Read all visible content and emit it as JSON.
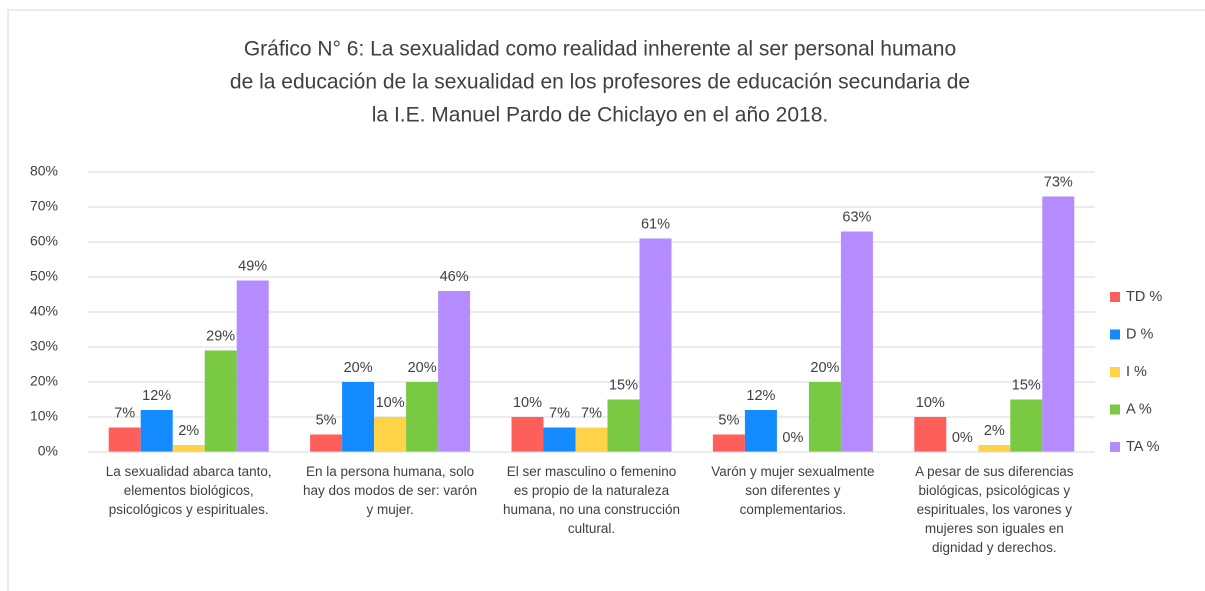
{
  "chart_data": {
    "type": "bar",
    "title": [
      "Gráfico N° 6: La sexualidad como realidad inherente al ser personal humano",
      "de la educación de la sexualidad en los profesores de educación secundaria de",
      "la I.E. Manuel Pardo de Chiclayo en el año 2018."
    ],
    "categories": [
      "La sexualidad abarca tanto, elementos biológicos, psicológicos y espirituales.",
      "En la persona humana, solo hay dos modos de ser: varón y mujer.",
      "El ser masculino o femenino es propio de la naturaleza humana, no una construcción cultural.",
      "Varón y mujer sexualmente son diferentes y complementarios.",
      "A pesar de sus diferencias biológicas, psicológicas y espirituales, los varones y mujeres son iguales en dignidad y derechos."
    ],
    "series": [
      {
        "name": "TD %",
        "color": "#ff5f5a",
        "values": [
          7,
          5,
          10,
          5,
          10
        ],
        "value_labels": [
          "7%",
          "5%",
          "10%",
          "5%",
          "10%"
        ]
      },
      {
        "name": "D %",
        "color": "#138bff",
        "values": [
          12,
          20,
          7,
          12,
          0
        ],
        "value_labels": [
          "12%",
          "20%",
          "7%",
          "12%",
          "0%"
        ]
      },
      {
        "name": "I %",
        "color": "#ffd347",
        "values": [
          2,
          10,
          7,
          0,
          2
        ],
        "value_labels": [
          "2%",
          "10%",
          "7%",
          "0%",
          "2%"
        ]
      },
      {
        "name": "A %",
        "color": "#79c943",
        "values": [
          29,
          20,
          15,
          20,
          15
        ],
        "value_labels": [
          "29%",
          "20%",
          "15%",
          "20%",
          "15%"
        ]
      },
      {
        "name": "TA %",
        "color": "#b48cff",
        "values": [
          49,
          46,
          61,
          63,
          73
        ],
        "value_labels": [
          "49%",
          "46%",
          "61%",
          "63%",
          "73%"
        ]
      }
    ],
    "ylim": [
      0,
      80
    ],
    "yticks": [
      {
        "value": 0,
        "label": "0%"
      },
      {
        "value": 10,
        "label": "10%"
      },
      {
        "value": 20,
        "label": "20%"
      },
      {
        "value": 30,
        "label": "30%"
      },
      {
        "value": 40,
        "label": "40%"
      },
      {
        "value": 50,
        "label": "50%"
      },
      {
        "value": 60,
        "label": "60%"
      },
      {
        "value": 70,
        "label": "70%"
      },
      {
        "value": 80,
        "label": "80%"
      }
    ],
    "grid": true,
    "legend": "right"
  }
}
